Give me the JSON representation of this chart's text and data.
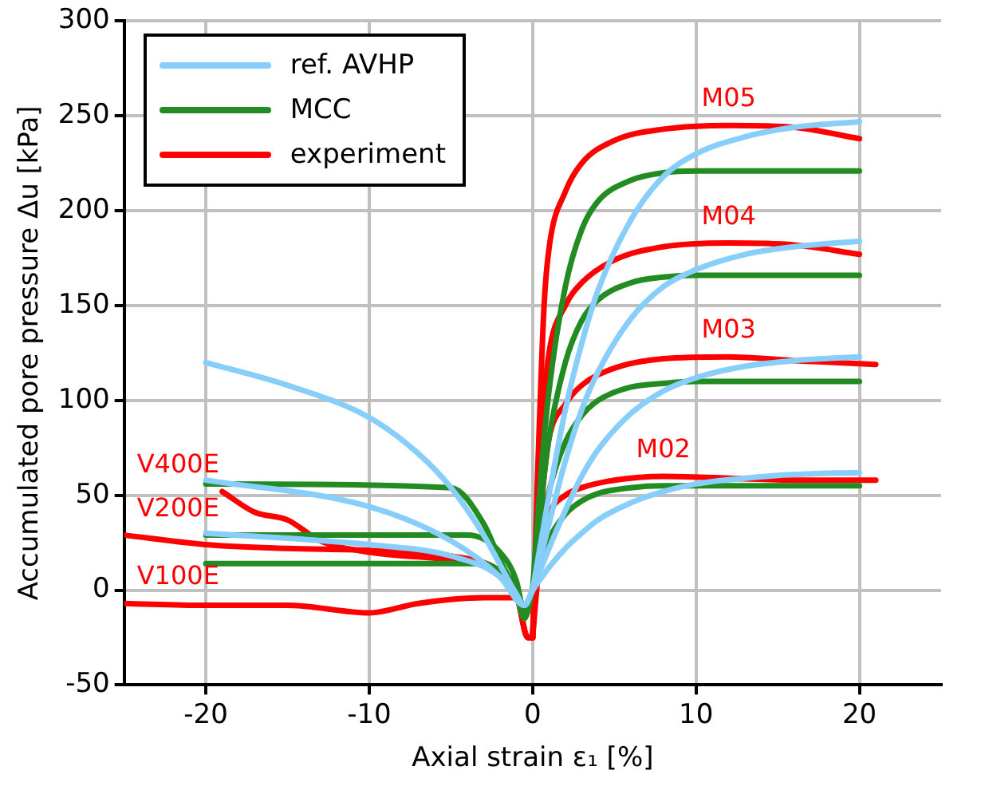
{
  "chart_data": {
    "type": "line",
    "xlabel": "Axial strain ε₁ [%]",
    "ylabel": "Accumulated pore pressure Δu [kPa]",
    "xlim": [
      -25,
      25
    ],
    "xticks": [
      -20,
      -10,
      0,
      10,
      20
    ],
    "ylim": [
      -50,
      300
    ],
    "yticks": [
      -50,
      0,
      50,
      100,
      150,
      200,
      250,
      300
    ],
    "grid": true,
    "legend": "top left",
    "marker": "none",
    "line_style": "solid",
    "series": [
      {
        "name": "ref. AVHP",
        "color": "#87cefa",
        "x": [
          0,
          1,
          2,
          3,
          4,
          6,
          8,
          10,
          13,
          16,
          20
        ],
        "values": [
          0,
          50,
          95,
          130,
          158,
          195,
          218,
          230,
          239,
          244,
          247
        ]
      },
      {
        "color": "#87cefa",
        "x": [
          0,
          1,
          2,
          3,
          4,
          6,
          8,
          10,
          13,
          16,
          20
        ],
        "values": [
          0,
          35,
          68,
          95,
          115,
          143,
          160,
          169,
          177,
          181,
          184
        ]
      },
      {
        "color": "#87cefa",
        "x": [
          0,
          1,
          2,
          3,
          4,
          6,
          8,
          10,
          13,
          16,
          20
        ],
        "values": [
          0,
          22,
          42,
          60,
          74,
          93,
          105,
          112,
          118,
          121,
          123
        ]
      },
      {
        "color": "#87cefa",
        "x": [
          0,
          1,
          2,
          3,
          4,
          6,
          8,
          10,
          13,
          16,
          20
        ],
        "values": [
          0,
          12,
          22,
          30,
          37,
          46,
          52,
          56,
          59,
          61,
          62
        ]
      },
      {
        "color": "#87cefa",
        "x": [
          -20,
          -15,
          -10,
          -7,
          -5,
          -3,
          -1,
          -0.5,
          0
        ],
        "values": [
          120,
          108,
          91,
          72,
          54,
          29,
          -2,
          -8,
          0
        ]
      },
      {
        "color": "#87cefa",
        "x": [
          -20,
          -10,
          -5,
          -2,
          -0.5,
          0
        ],
        "values": [
          58,
          44,
          26,
          7,
          -8,
          0
        ]
      },
      {
        "color": "#87cefa",
        "x": [
          -20,
          -10,
          -5,
          -2,
          -0.5,
          0
        ],
        "values": [
          30,
          24,
          18,
          7,
          -8,
          0
        ]
      },
      {
        "name": "MCC",
        "color": "#228b22",
        "x": [
          0,
          0.5,
          1,
          2,
          3,
          4,
          6,
          8,
          10,
          20
        ],
        "values": [
          0,
          60,
          105,
          160,
          190,
          205,
          216,
          220,
          221,
          221
        ]
      },
      {
        "color": "#228b22",
        "x": [
          0,
          0.5,
          1,
          2,
          3,
          4,
          6,
          8,
          10,
          20
        ],
        "values": [
          0,
          45,
          80,
          120,
          142,
          153,
          162,
          165,
          166,
          166
        ]
      },
      {
        "color": "#228b22",
        "x": [
          0,
          0.5,
          1,
          2,
          3,
          4,
          6,
          8,
          10,
          20
        ],
        "values": [
          0,
          30,
          52,
          78,
          92,
          100,
          107,
          109,
          110,
          110
        ]
      },
      {
        "color": "#228b22",
        "x": [
          0,
          0.5,
          1,
          2,
          3,
          4,
          6,
          8,
          20
        ],
        "values": [
          0,
          15,
          27,
          40,
          47,
          51,
          54,
          55,
          55
        ]
      },
      {
        "color": "#228b22",
        "x": [
          -20,
          -5,
          -3,
          -2,
          -1,
          -0.5,
          0
        ],
        "values": [
          56,
          54,
          35,
          16,
          -2,
          -15,
          0
        ]
      },
      {
        "color": "#228b22",
        "x": [
          -20,
          -4,
          -2,
          -1,
          -0.5,
          0
        ],
        "values": [
          29,
          29,
          20,
          5,
          -12,
          0
        ]
      },
      {
        "color": "#228b22",
        "x": [
          -20,
          -3,
          -2,
          -1,
          -0.5,
          0
        ],
        "values": [
          14,
          14,
          10,
          2,
          -10,
          0
        ]
      },
      {
        "name": "experiment",
        "color": "#ff0000",
        "x": [
          0,
          0.3,
          0.7,
          1,
          2,
          3,
          5,
          8,
          12,
          16,
          20
        ],
        "values": [
          -25,
          60,
          150,
          180,
          210,
          225,
          237,
          243,
          245,
          244,
          238
        ]
      },
      {
        "color": "#ff0000",
        "x": [
          0,
          0.3,
          0.7,
          1,
          2,
          3,
          5,
          8,
          12,
          16,
          20
        ],
        "values": [
          -25,
          40,
          100,
          125,
          150,
          162,
          174,
          181,
          183,
          182,
          177
        ]
      },
      {
        "color": "#ff0000",
        "x": [
          0,
          0.3,
          0.7,
          1,
          2,
          3,
          5,
          8,
          12,
          16,
          21
        ],
        "values": [
          -25,
          20,
          60,
          80,
          98,
          108,
          117,
          122,
          123,
          121,
          119
        ]
      },
      {
        "color": "#ff0000",
        "x": [
          0,
          0.3,
          0.7,
          1,
          2,
          3,
          5,
          8,
          12,
          16,
          21
        ],
        "values": [
          -25,
          5,
          30,
          40,
          50,
          54,
          58,
          60,
          59,
          58,
          58
        ]
      },
      {
        "color": "#ff0000",
        "x": [
          -19,
          -17,
          -15,
          -13,
          -10,
          -5,
          -3,
          -1,
          -0.3,
          0
        ],
        "values": [
          52,
          41,
          37,
          26,
          20,
          16,
          13,
          -2,
          -25,
          -25
        ]
      },
      {
        "color": "#ff0000",
        "x": [
          -25,
          -20,
          -15,
          -10,
          -5,
          -2,
          -1,
          -0.3,
          0
        ],
        "values": [
          29,
          24,
          22,
          21,
          18,
          10,
          0,
          -25,
          -25
        ]
      },
      {
        "color": "#ff0000",
        "x": [
          -25,
          -20,
          -15,
          -10,
          -7,
          -3,
          -1,
          -0.3,
          0
        ],
        "values": [
          -7,
          -8,
          -8,
          -12,
          -7,
          -4,
          -4,
          -25,
          -25
        ]
      }
    ],
    "annotations": [
      "M05",
      "M04",
      "M03",
      "M02",
      "V400E",
      "V200E",
      "V100E"
    ]
  }
}
